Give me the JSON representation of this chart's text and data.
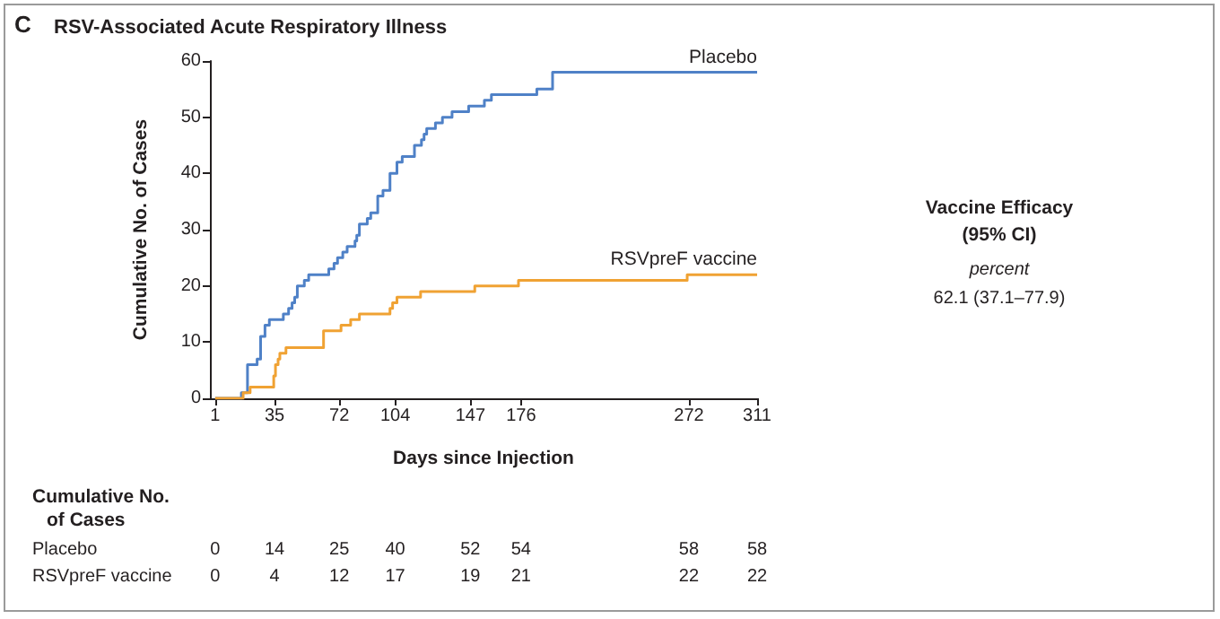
{
  "chart_data": {
    "type": "step",
    "title": "RSV-Associated Acute Respiratory Illness",
    "xlabel": "Days since Injection",
    "ylabel": "Cumulative No. of Cases",
    "annotations": [
      "C",
      "Cumulative No. of Cases",
      "0",
      "14",
      "25",
      "40",
      "52",
      "54",
      "58",
      "58",
      "0",
      "4",
      "12",
      "17",
      "19",
      "21",
      "22",
      "22",
      "Vaccine Efficacy (95% CI)",
      "percent",
      "62.1 (37.1–77.9)"
    ],
    "xlim": [
      -2,
      311
    ],
    "xticks": [
      1,
      35,
      72,
      104,
      147,
      176,
      272,
      311
    ],
    "ylim": [
      0,
      60
    ],
    "yticks": [
      0,
      10,
      20,
      30,
      40,
      50,
      60
    ],
    "series": [
      {
        "name": "Placebo",
        "color": "#4f81c7",
        "x": [
          1,
          16,
          19.5,
          25,
          27,
          29.5,
          32,
          35,
          40,
          43,
          45,
          46.5,
          48,
          52,
          54.5,
          66,
          69,
          71,
          72,
          74,
          76.5,
          81,
          82,
          83.5,
          88,
          90,
          94,
          97,
          101,
          104,
          105,
          108,
          115,
          119,
          120.5,
          122,
          127,
          131,
          136.5,
          146,
          147,
          155,
          159,
          176,
          185,
          194,
          272,
          311
        ],
        "values": [
          0,
          1,
          6,
          7,
          11,
          13,
          14,
          14,
          15,
          16,
          17,
          18,
          20,
          21,
          22,
          23,
          24,
          25,
          25,
          26,
          27,
          28,
          29,
          31,
          32,
          33,
          36,
          37,
          40,
          40,
          42,
          43,
          45,
          46,
          47,
          48,
          49,
          50,
          51,
          52,
          52,
          53,
          54,
          54,
          55,
          58,
          58,
          58
        ]
      },
      {
        "name": "RSVpreF vaccine",
        "color": "#f0a233",
        "x": [
          1,
          17,
          21,
          34.5,
          35,
          35.5,
          37,
          38,
          41.5,
          63,
          72,
          73,
          78.5,
          83.5,
          101,
          102.5,
          104,
          105,
          118.5,
          147,
          149.5,
          174.5,
          176,
          271,
          272,
          311
        ],
        "values": [
          0,
          1,
          2,
          4,
          4,
          6,
          7,
          8,
          9,
          12,
          12,
          13,
          14,
          15,
          16,
          17,
          17,
          18,
          19,
          19,
          20,
          21,
          21,
          22,
          22,
          22
        ]
      }
    ]
  }
}
